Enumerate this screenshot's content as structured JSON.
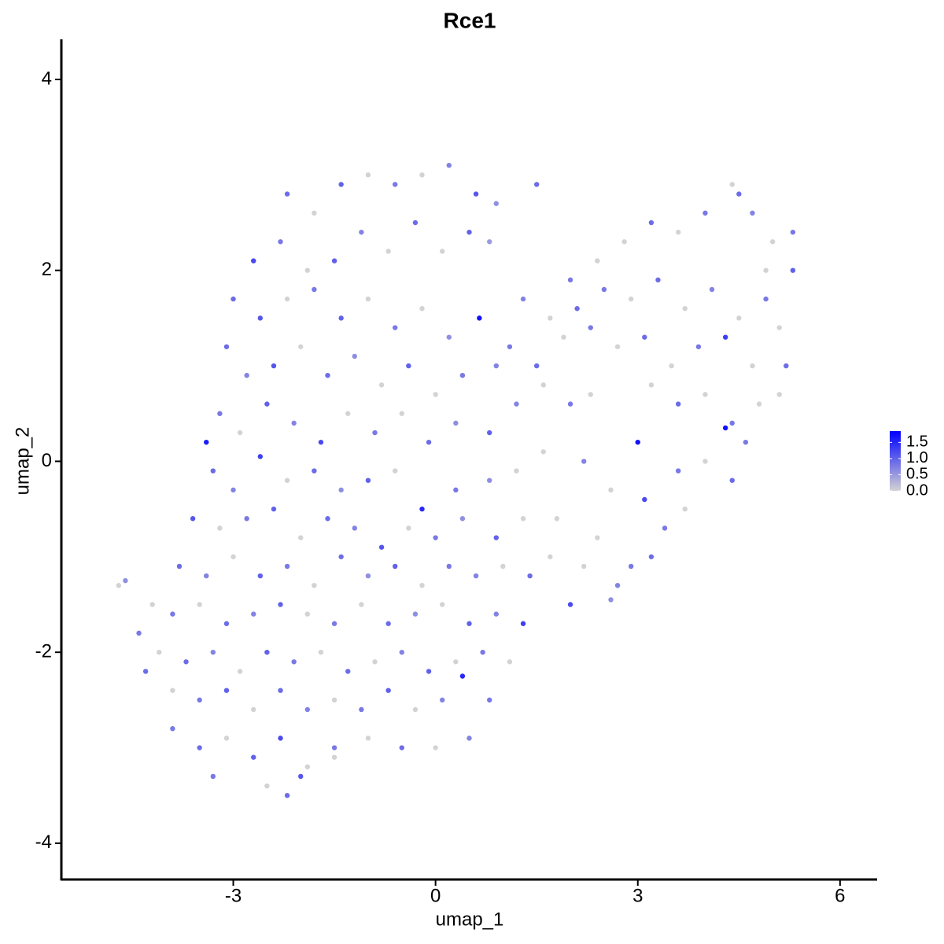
{
  "chart_data": {
    "type": "scatter",
    "title": "Rce1",
    "x_label": "umap_1",
    "y_label": "umap_2",
    "xlim": [
      -5.55,
      6.55
    ],
    "xticks": [
      -3,
      0,
      3,
      6
    ],
    "ylim": [
      -4.38,
      4.42
    ],
    "yticks": [
      -4,
      -2,
      0,
      2,
      4
    ],
    "color_scale": [
      "#d3d3d3",
      "#0000ff"
    ],
    "color_lim": [
      0,
      1.85
    ],
    "color_ticks": [
      {
        "value": 0,
        "label": "0.0"
      },
      0.5,
      {
        "value": 1,
        "label": "1.0"
      },
      1.5
    ],
    "series": [
      {
        "x": [
          -2.2,
          -1.8,
          -1.4,
          -1.0,
          -0.6,
          -0.2,
          0.2,
          0.6,
          0.9,
          1.5,
          -2.7,
          -2.3,
          -1.9,
          -1.5,
          -1.1,
          -0.7,
          -0.3,
          0.1,
          0.5,
          0.8,
          -3.0,
          -2.6,
          -2.2,
          -1.8,
          -1.4,
          -1.0,
          -0.6,
          -0.2,
          0.2,
          0.65,
          -3.1,
          -2.8,
          -2.4,
          -2.0,
          -1.6,
          -1.2,
          -0.8,
          -0.4,
          0.0,
          0.4,
          0.9,
          -3.2,
          -2.9,
          -2.5,
          -2.1,
          -1.7,
          -1.3,
          -0.9,
          -0.5,
          -0.1,
          0.3,
          0.8,
          -3.4,
          -3.3,
          -3.0,
          -2.6,
          -2.2,
          -1.8,
          -1.4,
          -1.0,
          -0.6,
          -0.2,
          0.3,
          0.8,
          1.2,
          -3.6,
          -3.2,
          -2.8,
          -2.4,
          -2.0,
          -1.6,
          -1.2,
          -0.8,
          -0.4,
          0.0,
          0.4,
          0.9,
          1.3,
          -3.8,
          -3.4,
          -3.0,
          -2.6,
          -2.2,
          -1.8,
          -1.4,
          -1.0,
          -0.6,
          -0.2,
          0.2,
          0.6,
          1.0,
          1.4,
          1.7,
          -4.7,
          -4.6,
          -4.2,
          -3.9,
          -3.5,
          -3.1,
          -2.7,
          -2.3,
          -1.9,
          -1.5,
          -1.1,
          -0.7,
          -0.3,
          0.1,
          0.5,
          0.9,
          1.3,
          2.0,
          -4.4,
          -4.1,
          -3.7,
          -3.3,
          -2.9,
          -2.5,
          -2.1,
          -1.7,
          -1.3,
          -0.9,
          -0.5,
          -0.1,
          0.3,
          0.7,
          1.1,
          -4.3,
          -3.9,
          -3.5,
          -3.1,
          -2.7,
          -2.3,
          -1.9,
          -1.5,
          -1.1,
          -0.7,
          -0.3,
          0.1,
          0.4,
          0.8,
          -3.9,
          -3.5,
          -3.1,
          -2.7,
          -2.3,
          -1.9,
          -1.5,
          -1.0,
          -0.5,
          0.0,
          0.5,
          -3.3,
          -2.5,
          -2.2,
          -1.5,
          -2.0,
          2.0,
          2.4,
          2.8,
          3.2,
          3.6,
          4.0,
          4.4,
          4.5,
          4.7,
          5.0,
          5.3,
          5.3,
          4.9,
          1.3,
          1.7,
          2.1,
          2.5,
          2.9,
          3.3,
          3.7,
          4.1,
          4.5,
          4.9,
          5.1,
          1.1,
          1.5,
          1.9,
          2.3,
          2.7,
          3.1,
          3.5,
          3.9,
          4.3,
          4.7,
          5.2,
          1.2,
          1.6,
          2.0,
          2.3,
          3.2,
          3.6,
          4.0,
          4.4,
          4.8,
          5.1,
          4.6,
          4.3,
          1.6,
          2.2,
          3.0,
          3.6,
          4.0,
          4.4,
          2.6,
          1.8,
          2.4,
          3.1,
          3.4,
          3.7,
          2.2,
          2.9,
          3.2,
          2.7,
          2.6
        ],
        "y": [
          2.8,
          2.6,
          2.9,
          3.0,
          2.9,
          3.0,
          3.1,
          2.8,
          2.7,
          2.9,
          2.1,
          2.3,
          2.0,
          2.1,
          2.4,
          2.2,
          2.5,
          2.2,
          2.4,
          2.3,
          1.7,
          1.5,
          1.7,
          1.8,
          1.5,
          1.7,
          1.4,
          1.6,
          1.3,
          1.5,
          1.2,
          0.9,
          1.0,
          1.2,
          0.9,
          1.1,
          0.8,
          1.0,
          0.7,
          0.9,
          1.0,
          0.5,
          0.3,
          0.6,
          0.4,
          0.2,
          0.5,
          0.3,
          0.5,
          0.2,
          0.4,
          0.3,
          0.2,
          -0.1,
          -0.3,
          0.05,
          -0.2,
          -0.1,
          -0.3,
          -0.2,
          -0.1,
          -0.5,
          -0.3,
          -0.2,
          -0.1,
          -0.6,
          -0.7,
          -0.6,
          -0.5,
          -0.8,
          -0.6,
          -0.7,
          -0.9,
          -0.7,
          -0.8,
          -0.6,
          -0.8,
          -0.6,
          -1.1,
          -1.2,
          -1.0,
          -1.2,
          -1.1,
          -1.3,
          -1.0,
          -1.2,
          -1.1,
          -1.3,
          -1.1,
          -1.2,
          -1.1,
          -1.2,
          -1.0,
          -1.3,
          -1.25,
          -1.5,
          -1.6,
          -1.5,
          -1.7,
          -1.6,
          -1.5,
          -1.6,
          -1.7,
          -1.5,
          -1.7,
          -1.6,
          -1.5,
          -1.7,
          -1.6,
          -1.7,
          -1.5,
          -1.8,
          -2.0,
          -2.1,
          -2.0,
          -2.2,
          -2.0,
          -2.1,
          -2.0,
          -2.2,
          -2.1,
          -2.0,
          -2.2,
          -2.1,
          -2.0,
          -2.1,
          -2.2,
          -2.4,
          -2.5,
          -2.4,
          -2.6,
          -2.4,
          -2.6,
          -2.5,
          -2.6,
          -2.4,
          -2.6,
          -2.5,
          -2.25,
          -2.5,
          -2.8,
          -3.0,
          -2.9,
          -3.1,
          -2.9,
          -3.2,
          -3.0,
          -2.9,
          -3.0,
          -3.0,
          -2.9,
          -3.3,
          -3.4,
          -3.5,
          -3.1,
          -3.3,
          1.9,
          2.1,
          2.3,
          2.5,
          2.4,
          2.6,
          2.9,
          2.8,
          2.6,
          2.3,
          2.4,
          2.0,
          2.0,
          1.7,
          1.5,
          1.6,
          1.8,
          1.7,
          1.9,
          1.6,
          1.8,
          1.5,
          1.7,
          1.4,
          1.2,
          1.0,
          1.3,
          1.4,
          1.2,
          1.3,
          1.0,
          1.2,
          1.3,
          1.0,
          1.0,
          0.6,
          0.8,
          0.6,
          0.7,
          0.8,
          0.6,
          0.7,
          0.4,
          0.6,
          0.7,
          0.2,
          0.35,
          0.1,
          0.0,
          0.2,
          -0.1,
          0.0,
          -0.2,
          -0.3,
          -0.6,
          -0.8,
          -0.4,
          -0.7,
          -0.5,
          -1.1,
          -1.1,
          -1.0,
          -1.3,
          -1.45
        ],
        "values": [
          0.9,
          0,
          1.0,
          0,
          0.8,
          0,
          0.7,
          1.1,
          0.6,
          0.9,
          1.2,
          0.8,
          0,
          1.0,
          0.7,
          0,
          0.9,
          0,
          1.0,
          0.5,
          0.9,
          1.1,
          0,
          0.8,
          1.0,
          0,
          0.8,
          0,
          0.6,
          1.7,
          0.9,
          0.7,
          1.1,
          0,
          0.9,
          0.6,
          0,
          1.0,
          0,
          0.8,
          0.7,
          0.8,
          0,
          1.0,
          0.7,
          1.2,
          0,
          0.8,
          0,
          0.9,
          0.6,
          1.0,
          1.6,
          0.9,
          0.7,
          1.3,
          0,
          0.9,
          0.6,
          1.0,
          0,
          1.5,
          0.8,
          0.6,
          0,
          1.1,
          0,
          0.8,
          1.0,
          0,
          0.9,
          0.7,
          1.1,
          0,
          0.8,
          0.6,
          1.0,
          0,
          0.9,
          0.7,
          0,
          1.0,
          0.8,
          0,
          0.9,
          0.6,
          1.0,
          0,
          0.8,
          0.7,
          0,
          0.9,
          0,
          0,
          0.6,
          0,
          0.8,
          0,
          0.9,
          0.7,
          1.0,
          0,
          0.8,
          0,
          0.9,
          0.6,
          0,
          1.0,
          0.7,
          1.3,
          1.2,
          0.8,
          0,
          0.9,
          0.7,
          0,
          1.0,
          0.8,
          0,
          0.9,
          0,
          0.7,
          1.0,
          0,
          0.8,
          0,
          0.9,
          0,
          0.8,
          1.0,
          0,
          0.9,
          0.7,
          0,
          0.8,
          1.0,
          0,
          0.7,
          1.5,
          0.8,
          0.8,
          0.9,
          0,
          1.0,
          1.2,
          0,
          0.8,
          0,
          0.9,
          0,
          0.7,
          0.8,
          0,
          0.9,
          0,
          1.1,
          0.8,
          0,
          0,
          0.9,
          0,
          0.8,
          0,
          0.9,
          0.7,
          0,
          0.8,
          1.0,
          0,
          0.7,
          0,
          0.9,
          0.8,
          0,
          0.9,
          0,
          0.7,
          0,
          0.8,
          0,
          0.8,
          0.9,
          0,
          0.8,
          0,
          0.9,
          0,
          0.8,
          1.3,
          0,
          0.9,
          0.7,
          0,
          0.8,
          0,
          0,
          0.9,
          0,
          0.8,
          0,
          0,
          0.8,
          1.7,
          0,
          0.7,
          1.7,
          0.8,
          0,
          0.9,
          0,
          0,
          0,
          1.2,
          0.8,
          0,
          0,
          0.8,
          0.9,
          0.7,
          0.6
        ]
      }
    ]
  }
}
